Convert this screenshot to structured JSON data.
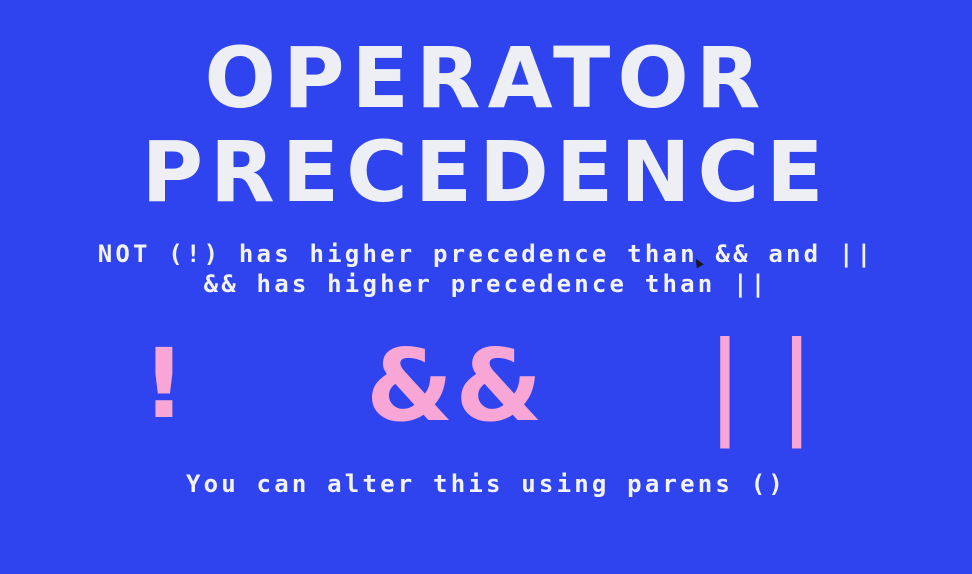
{
  "slide": {
    "title_line_1": "OPERATOR",
    "title_line_2": "PRECEDENCE",
    "rule_1": "NOT (!) has higher precedence than && and ||",
    "rule_2": "&& has higher precedence than ||",
    "operators": {
      "not": "!",
      "and": "&&",
      "or": "||"
    },
    "footer": "You can alter this using parens ()",
    "colors": {
      "background": "#2f44ef",
      "text": "#eef0f6",
      "operator_accent": "#f7a6d6"
    }
  }
}
